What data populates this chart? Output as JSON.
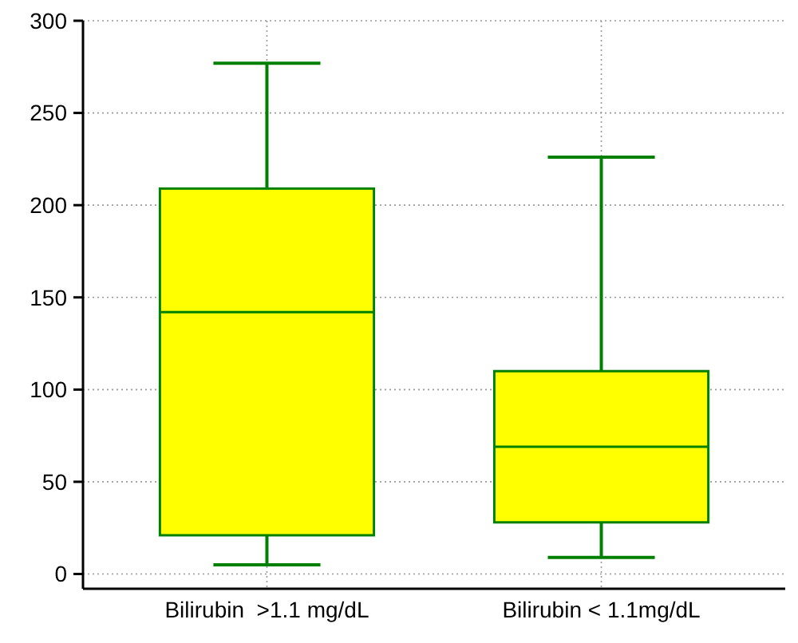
{
  "chart_data": {
    "type": "box",
    "categories": [
      "Bilirubin  >1.1 mg/dL",
      "Bilirubin < 1.1mg/dL"
    ],
    "boxes": [
      {
        "low": 5,
        "q1": 21,
        "median": 142,
        "q3": 209,
        "high": 277
      },
      {
        "low": 9,
        "q1": 28,
        "median": 69,
        "q3": 110,
        "high": 226
      }
    ],
    "color": "#ffff00",
    "ylim": [
      -8,
      300
    ],
    "yticks": [
      0,
      50,
      100,
      150,
      200,
      250,
      300
    ],
    "grid": true
  }
}
